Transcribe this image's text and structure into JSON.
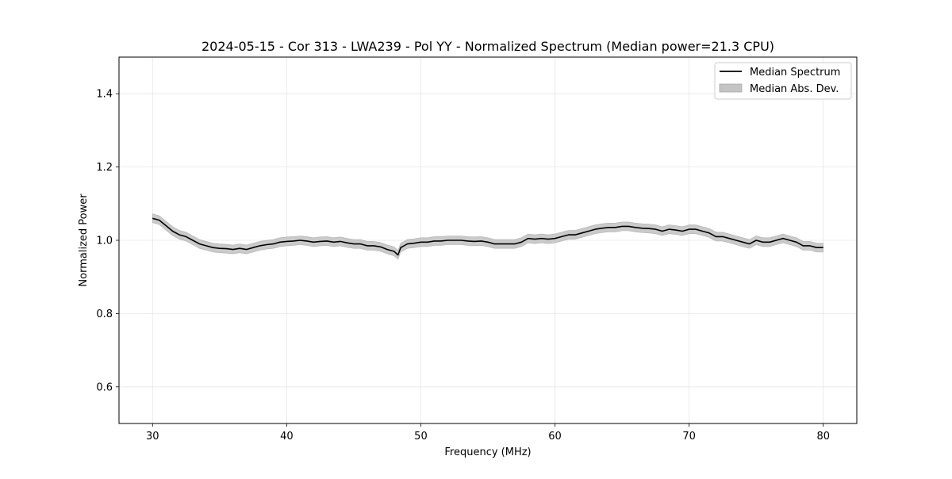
{
  "chart_data": {
    "type": "line",
    "title": "2024-05-15 - Cor 313 - LWA239 - Pol YY - Normalized Spectrum (Median power=21.3 CPU)",
    "xlabel": "Frequency (MHz)",
    "ylabel": "Normalized Power",
    "xlim": [
      27.5,
      82.5
    ],
    "ylim": [
      0.5,
      1.5
    ],
    "grid": true,
    "legend_position": "top-right",
    "x_ticks": [
      30,
      40,
      50,
      60,
      70,
      80
    ],
    "y_ticks": [
      0.6,
      0.8,
      1.0,
      1.2,
      1.4
    ],
    "x_tick_labels": [
      "30",
      "40",
      "50",
      "60",
      "70",
      "80"
    ],
    "y_tick_labels": [
      "0.6",
      "0.8",
      "1.0",
      "1.2",
      "1.4"
    ],
    "series": [
      {
        "name": "Median Spectrum",
        "kind": "line",
        "color": "#000000",
        "x": [
          30.0,
          30.5,
          31.0,
          31.5,
          32.0,
          32.5,
          33.0,
          33.5,
          34.0,
          34.5,
          35.0,
          35.5,
          36.0,
          36.5,
          37.0,
          37.5,
          38.0,
          38.5,
          39.0,
          39.5,
          40.0,
          40.5,
          41.0,
          41.5,
          42.0,
          42.5,
          43.0,
          43.5,
          44.0,
          44.5,
          45.0,
          45.5,
          46.0,
          46.5,
          47.0,
          47.5,
          48.0,
          48.3,
          48.5,
          49.0,
          49.5,
          50.0,
          50.5,
          51.0,
          51.5,
          52.0,
          52.5,
          53.0,
          53.5,
          54.0,
          54.5,
          55.0,
          55.5,
          56.0,
          56.5,
          57.0,
          57.5,
          58.0,
          58.5,
          59.0,
          59.5,
          60.0,
          60.5,
          61.0,
          61.5,
          62.0,
          62.5,
          63.0,
          63.5,
          64.0,
          64.5,
          65.0,
          65.5,
          66.0,
          66.5,
          67.0,
          67.5,
          68.0,
          68.5,
          69.0,
          69.5,
          70.0,
          70.5,
          71.0,
          71.5,
          72.0,
          72.5,
          73.0,
          73.5,
          74.0,
          74.5,
          75.0,
          75.5,
          76.0,
          76.5,
          77.0,
          77.5,
          78.0,
          78.5,
          79.0,
          79.5,
          80.0
        ],
        "values": [
          1.06,
          1.055,
          1.04,
          1.025,
          1.015,
          1.01,
          1.0,
          0.99,
          0.985,
          0.98,
          0.978,
          0.977,
          0.975,
          0.978,
          0.975,
          0.98,
          0.985,
          0.988,
          0.99,
          0.995,
          0.997,
          0.998,
          1.0,
          0.998,
          0.995,
          0.997,
          0.998,
          0.995,
          0.997,
          0.993,
          0.99,
          0.99,
          0.985,
          0.985,
          0.982,
          0.975,
          0.97,
          0.96,
          0.98,
          0.99,
          0.992,
          0.995,
          0.995,
          0.998,
          0.998,
          1.0,
          1.0,
          1.0,
          0.998,
          0.997,
          0.998,
          0.995,
          0.99,
          0.99,
          0.99,
          0.99,
          0.995,
          1.005,
          1.003,
          1.005,
          1.003,
          1.005,
          1.01,
          1.015,
          1.015,
          1.02,
          1.025,
          1.03,
          1.033,
          1.035,
          1.035,
          1.038,
          1.038,
          1.035,
          1.033,
          1.032,
          1.03,
          1.025,
          1.03,
          1.028,
          1.025,
          1.03,
          1.03,
          1.025,
          1.02,
          1.01,
          1.01,
          1.005,
          1.0,
          0.995,
          0.99,
          1.0,
          0.995,
          0.995,
          1.0,
          1.005,
          1.0,
          0.995,
          0.985,
          0.985,
          0.98,
          0.98
        ]
      },
      {
        "name": "Median Abs. Dev.",
        "kind": "band",
        "color": "#c4c4c4",
        "half_width": 0.012
      }
    ]
  }
}
